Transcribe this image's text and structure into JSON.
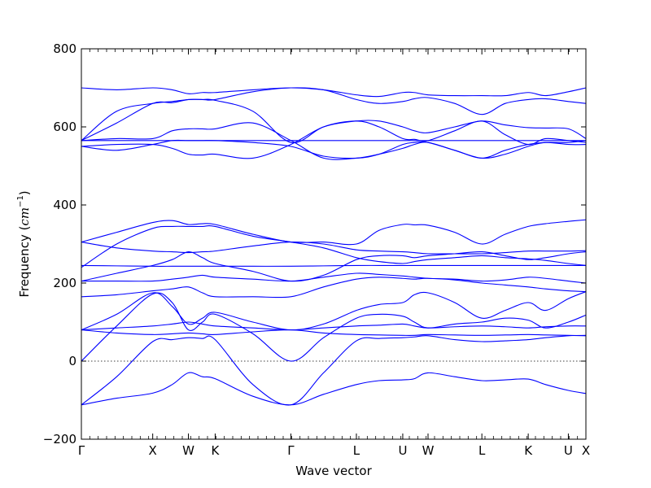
{
  "chart_data": {
    "type": "line",
    "title": "",
    "xlabel": "Wave vector",
    "ylabel_text": "Frequency (",
    "ylabel_unit": "cm",
    "ylabel_exp": "−1",
    "ylabel_close": ")",
    "ylim": [
      -200,
      800
    ],
    "yticks": [
      -200,
      0,
      200,
      400,
      600,
      800
    ],
    "ytick_labels": [
      "−200",
      "0",
      "200",
      "400",
      "600",
      "800"
    ],
    "x_range": [
      0,
      10
    ],
    "high_symmetry_points": [
      {
        "label": "Γ",
        "x": 0
      },
      {
        "label": "X",
        "x": 1.414
      },
      {
        "label": "W",
        "x": 2.121
      },
      {
        "label": "K",
        "x": 2.652
      },
      {
        "label": "Γ",
        "x": 4.152
      },
      {
        "label": "L",
        "x": 5.451
      },
      {
        "label": "U",
        "x": 6.37
      },
      {
        "label": "W",
        "x": 6.871
      },
      {
        "label": "L",
        "x": 7.938
      },
      {
        "label": "K",
        "x": 8.857
      },
      {
        "label": "U",
        "x": 9.652
      },
      {
        "label": "X",
        "x": 10
      }
    ],
    "zero_line": true,
    "line_color": "#0000ff",
    "series": [
      {
        "x": [
          0,
          0.7,
          1.414,
          1.8,
          2.121,
          2.4,
          2.652,
          3.4,
          4.152,
          4.8,
          5.451,
          5.9,
          6.37,
          6.6,
          6.871,
          7.4,
          7.938,
          8.4,
          8.857,
          9.2,
          9.652,
          10
        ],
        "y": [
          -112,
          -95,
          -82,
          -60,
          -30,
          -40,
          -45,
          -90,
          -112,
          -85,
          -60,
          -50,
          -48,
          -45,
          -30,
          -40,
          -50,
          -48,
          -46,
          -60,
          -75,
          -83
        ]
      },
      {
        "x": [
          0,
          0.7,
          1.414,
          1.8,
          2.121,
          2.4,
          2.652,
          3.4,
          4.152,
          4.8,
          5.451,
          5.9,
          6.37,
          6.6,
          6.871,
          7.4,
          7.938,
          8.4,
          8.857,
          9.2,
          9.652,
          10
        ],
        "y": [
          -112,
          -40,
          50,
          55,
          60,
          58,
          55,
          -60,
          -112,
          -30,
          52,
          58,
          60,
          62,
          65,
          55,
          50,
          52,
          55,
          60,
          65,
          66
        ]
      },
      {
        "x": [
          0,
          0.7,
          1.414,
          1.8,
          2.121,
          2.4,
          2.652,
          3.4,
          4.152,
          4.8,
          5.451,
          5.9,
          6.37,
          6.6,
          6.871,
          7.4,
          7.938,
          8.4,
          8.857,
          9.2,
          9.652,
          10
        ],
        "y": [
          0,
          90,
          172,
          150,
          80,
          100,
          120,
          70,
          0,
          60,
          110,
          120,
          115,
          100,
          85,
          95,
          100,
          110,
          105,
          85,
          100,
          118
        ]
      },
      {
        "x": [
          0,
          0.7,
          1.414,
          1.8,
          2.121,
          2.4,
          2.652,
          3.4,
          4.152,
          4.8,
          5.451,
          5.9,
          6.37,
          6.6,
          6.871,
          7.4,
          7.938,
          8.4,
          8.857,
          9.2,
          9.652,
          10
        ],
        "y": [
          80,
          120,
          175,
          140,
          95,
          110,
          125,
          100,
          80,
          95,
          130,
          145,
          150,
          170,
          175,
          150,
          110,
          130,
          150,
          130,
          160,
          178
        ]
      },
      {
        "x": [
          0,
          0.7,
          1.414,
          1.8,
          2.121,
          2.4,
          2.652,
          3.4,
          4.152,
          4.8,
          5.451,
          5.9,
          6.37,
          6.6,
          6.871,
          7.4,
          7.938,
          8.4,
          8.857,
          9.2,
          9.652,
          10
        ],
        "y": [
          80,
          72,
          68,
          70,
          72,
          70,
          68,
          75,
          80,
          72,
          68,
          67,
          66,
          66,
          68,
          67,
          66,
          67,
          68,
          67,
          66,
          65
        ]
      },
      {
        "x": [
          0,
          0.7,
          1.414,
          1.8,
          2.121,
          2.4,
          2.652,
          3.4,
          4.152,
          4.8,
          5.451,
          5.9,
          6.37,
          6.6,
          6.871,
          7.4,
          7.938,
          8.4,
          8.857,
          9.2,
          9.652,
          10
        ],
        "y": [
          80,
          85,
          90,
          95,
          100,
          95,
          90,
          85,
          80,
          85,
          90,
          92,
          95,
          90,
          85,
          88,
          90,
          88,
          85,
          88,
          90,
          90
        ]
      },
      {
        "x": [
          0,
          0.7,
          1.414,
          1.8,
          2.121,
          2.4,
          2.652,
          3.4,
          4.152,
          4.8,
          5.451,
          5.9,
          6.37,
          6.6,
          6.871,
          7.4,
          7.938,
          8.4,
          8.857,
          9.2,
          9.652,
          10
        ],
        "y": [
          165,
          170,
          180,
          185,
          190,
          175,
          165,
          165,
          165,
          190,
          210,
          215,
          212,
          210,
          212,
          208,
          200,
          195,
          190,
          185,
          180,
          178
        ]
      },
      {
        "x": [
          0,
          0.7,
          1.414,
          1.8,
          2.121,
          2.4,
          2.652,
          3.4,
          4.152,
          4.8,
          5.451,
          5.9,
          6.37,
          6.6,
          6.871,
          7.4,
          7.938,
          8.4,
          8.857,
          9.2,
          9.652,
          10
        ],
        "y": [
          205,
          205,
          205,
          210,
          215,
          220,
          215,
          210,
          205,
          215,
          225,
          222,
          218,
          215,
          212,
          210,
          205,
          208,
          215,
          212,
          205,
          200
        ]
      },
      {
        "x": [
          0,
          0.7,
          1.414,
          1.8,
          2.121,
          2.4,
          2.652,
          3.4,
          4.152,
          4.8,
          5.451,
          5.9,
          6.37,
          6.6,
          6.871,
          7.4,
          7.938,
          8.4,
          8.857,
          9.2,
          9.652,
          10
        ],
        "y": [
          205,
          225,
          245,
          260,
          280,
          265,
          250,
          230,
          205,
          220,
          260,
          270,
          270,
          265,
          270,
          275,
          280,
          270,
          260,
          265,
          275,
          280
        ]
      },
      {
        "x": [
          0,
          0.7,
          1.414,
          1.8,
          2.121,
          2.4,
          2.652,
          3.4,
          4.152,
          4.8,
          5.451,
          5.9,
          6.37,
          6.6,
          6.871,
          7.4,
          7.938,
          8.4,
          8.857,
          9.2,
          9.652,
          10
        ],
        "y": [
          245,
          244,
          243,
          243,
          243,
          243,
          243,
          243,
          243,
          244,
          245,
          245,
          245,
          245,
          245,
          245,
          245,
          245,
          245,
          245,
          245,
          245
        ]
      },
      {
        "x": [
          0,
          0.7,
          1.414,
          1.8,
          2.121,
          2.4,
          2.652,
          3.4,
          4.152,
          4.8,
          5.451,
          5.9,
          6.37,
          6.6,
          6.871,
          7.4,
          7.938,
          8.4,
          8.857,
          9.2,
          9.652,
          10
        ],
        "y": [
          305,
          290,
          282,
          280,
          278,
          280,
          282,
          295,
          305,
          300,
          285,
          282,
          280,
          278,
          275,
          275,
          275,
          278,
          282,
          282,
          282,
          283
        ]
      },
      {
        "x": [
          0,
          0.7,
          1.414,
          1.8,
          2.121,
          2.4,
          2.652,
          3.4,
          4.152,
          4.8,
          5.451,
          5.9,
          6.37,
          6.6,
          6.871,
          7.4,
          7.938,
          8.4,
          8.857,
          9.2,
          9.652,
          10
        ],
        "y": [
          305,
          330,
          355,
          360,
          350,
          352,
          350,
          325,
          305,
          305,
          300,
          335,
          350,
          349,
          348,
          330,
          300,
          325,
          345,
          352,
          358,
          362
        ]
      },
      {
        "x": [
          0,
          0.7,
          1.414,
          1.8,
          2.121,
          2.4,
          2.652,
          3.4,
          4.152,
          4.8,
          5.451,
          5.9,
          6.37,
          6.6,
          6.871,
          7.4,
          7.938,
          8.4,
          8.857,
          9.2,
          9.652,
          10
        ],
        "y": [
          240,
          300,
          340,
          345,
          345,
          345,
          345,
          320,
          305,
          290,
          265,
          255,
          250,
          255,
          260,
          265,
          270,
          265,
          262,
          258,
          250,
          245
        ]
      },
      {
        "x": [
          0,
          0.7,
          1.414,
          1.8,
          2.121,
          2.4,
          2.652,
          3.4,
          4.152,
          4.8,
          5.451,
          5.9,
          6.37,
          6.6,
          6.871,
          7.4,
          7.938,
          8.4,
          8.857,
          9.2,
          9.652,
          10
        ],
        "y": [
          550,
          540,
          555,
          565,
          565,
          565,
          565,
          560,
          550,
          525,
          520,
          530,
          555,
          560,
          560,
          540,
          520,
          530,
          550,
          560,
          555,
          555
        ]
      },
      {
        "x": [
          0,
          0.7,
          1.414,
          1.8,
          2.121,
          2.4,
          2.652,
          3.4,
          4.152,
          4.8,
          5.451,
          5.9,
          6.37,
          6.6,
          6.871,
          7.4,
          7.938,
          8.4,
          8.857,
          9.2,
          9.652,
          10
        ],
        "y": [
          550,
          555,
          555,
          545,
          530,
          528,
          530,
          520,
          555,
          600,
          615,
          600,
          570,
          568,
          565,
          590,
          615,
          580,
          555,
          570,
          565,
          560
        ]
      },
      {
        "x": [
          0,
          0.7,
          1.414,
          1.8,
          2.121,
          2.4,
          2.652,
          3.4,
          4.152,
          4.8,
          5.451,
          5.9,
          6.37,
          6.6,
          6.871,
          7.4,
          7.938,
          8.4,
          8.857,
          9.2,
          9.652,
          10
        ],
        "y": [
          565,
          565,
          565,
          565,
          565,
          565,
          565,
          565,
          565,
          565,
          565,
          565,
          565,
          565,
          565,
          565,
          565,
          565,
          565,
          565,
          565,
          565
        ]
      },
      {
        "x": [
          0,
          0.7,
          1.414,
          1.8,
          2.121,
          2.4,
          2.652,
          3.4,
          4.152,
          4.8,
          5.451,
          5.9,
          6.37,
          6.6,
          6.871,
          7.4,
          7.938,
          8.4,
          8.857,
          9.2,
          9.652,
          10
        ],
        "y": [
          565,
          570,
          570,
          590,
          595,
          595,
          595,
          610,
          565,
          520,
          520,
          530,
          545,
          555,
          560,
          540,
          520,
          540,
          555,
          560,
          560,
          565
        ]
      },
      {
        "x": [
          0,
          0.7,
          1.414,
          1.8,
          2.121,
          2.4,
          2.652,
          3.4,
          4.152,
          4.8,
          5.451,
          5.9,
          6.37,
          6.6,
          6.871,
          7.4,
          7.938,
          8.4,
          8.857,
          9.2,
          9.652,
          10
        ],
        "y": [
          565,
          640,
          660,
          665,
          670,
          670,
          668,
          640,
          560,
          600,
          615,
          615,
          600,
          590,
          585,
          600,
          615,
          605,
          598,
          597,
          595,
          570
        ]
      },
      {
        "x": [
          0,
          0.7,
          1.414,
          1.8,
          2.121,
          2.4,
          2.652,
          3.4,
          4.152,
          4.8,
          5.451,
          5.9,
          6.37,
          6.6,
          6.871,
          7.4,
          7.938,
          8.4,
          8.857,
          9.2,
          9.652,
          10
        ],
        "y": [
          565,
          610,
          660,
          662,
          670,
          670,
          670,
          690,
          700,
          695,
          670,
          660,
          665,
          672,
          675,
          660,
          632,
          660,
          670,
          672,
          665,
          660
        ]
      },
      {
        "x": [
          0,
          0.7,
          1.414,
          1.8,
          2.121,
          2.4,
          2.652,
          3.4,
          4.152,
          4.8,
          5.451,
          5.9,
          6.37,
          6.6,
          6.871,
          7.4,
          7.938,
          8.4,
          8.857,
          9.2,
          9.652,
          10
        ],
        "y": [
          700,
          695,
          700,
          695,
          685,
          688,
          688,
          695,
          700,
          695,
          682,
          678,
          688,
          688,
          682,
          680,
          680,
          680,
          688,
          680,
          690,
          700
        ]
      }
    ]
  }
}
